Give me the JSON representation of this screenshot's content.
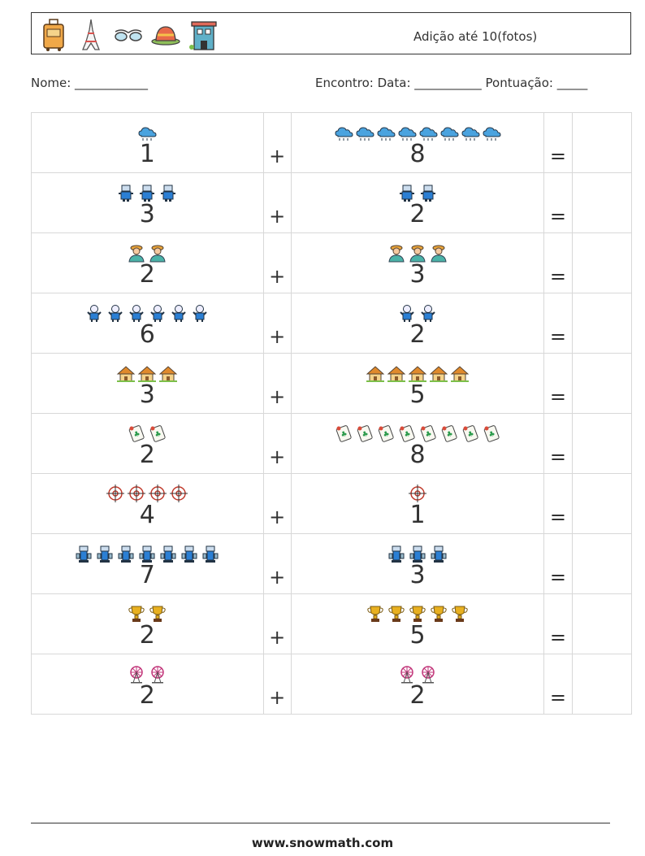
{
  "header": {
    "title": "Adição até 10(fotos)",
    "icons": [
      "suitcase-icon",
      "eiffel-tower-icon",
      "sunglasses-icon",
      "hat-icon",
      "building-icon"
    ]
  },
  "info": {
    "left": "Nome: ____________",
    "right": "Encontro: Data: ___________  Pontuação: _____"
  },
  "operators": {
    "plus": "+",
    "equals": "="
  },
  "problems": [
    {
      "a": "1",
      "b": "8",
      "icon": "cloud-icon",
      "color": "#4aa3df"
    },
    {
      "a": "3",
      "b": "2",
      "icon": "robot-icon",
      "color": "#2b7fd4"
    },
    {
      "a": "2",
      "b": "3",
      "icon": "farmer-icon",
      "color": "#e8a33a"
    },
    {
      "a": "6",
      "b": "2",
      "icon": "astronaut-icon",
      "color": "#2b7fd4"
    },
    {
      "a": "3",
      "b": "5",
      "icon": "hut-icon",
      "color": "#e08a2c"
    },
    {
      "a": "2",
      "b": "8",
      "icon": "mahjong-tile-icon",
      "color": "#d94b3a"
    },
    {
      "a": "4",
      "b": "1",
      "icon": "crosshair-icon",
      "color": "#c0392b"
    },
    {
      "a": "7",
      "b": "3",
      "icon": "machine-icon",
      "color": "#2b7fd4"
    },
    {
      "a": "2",
      "b": "5",
      "icon": "trophy-icon",
      "color": "#e8b020"
    },
    {
      "a": "2",
      "b": "2",
      "icon": "ferris-wheel-icon",
      "color": "#c2367a"
    }
  ],
  "footer": {
    "url": "www.snowmath.com"
  }
}
